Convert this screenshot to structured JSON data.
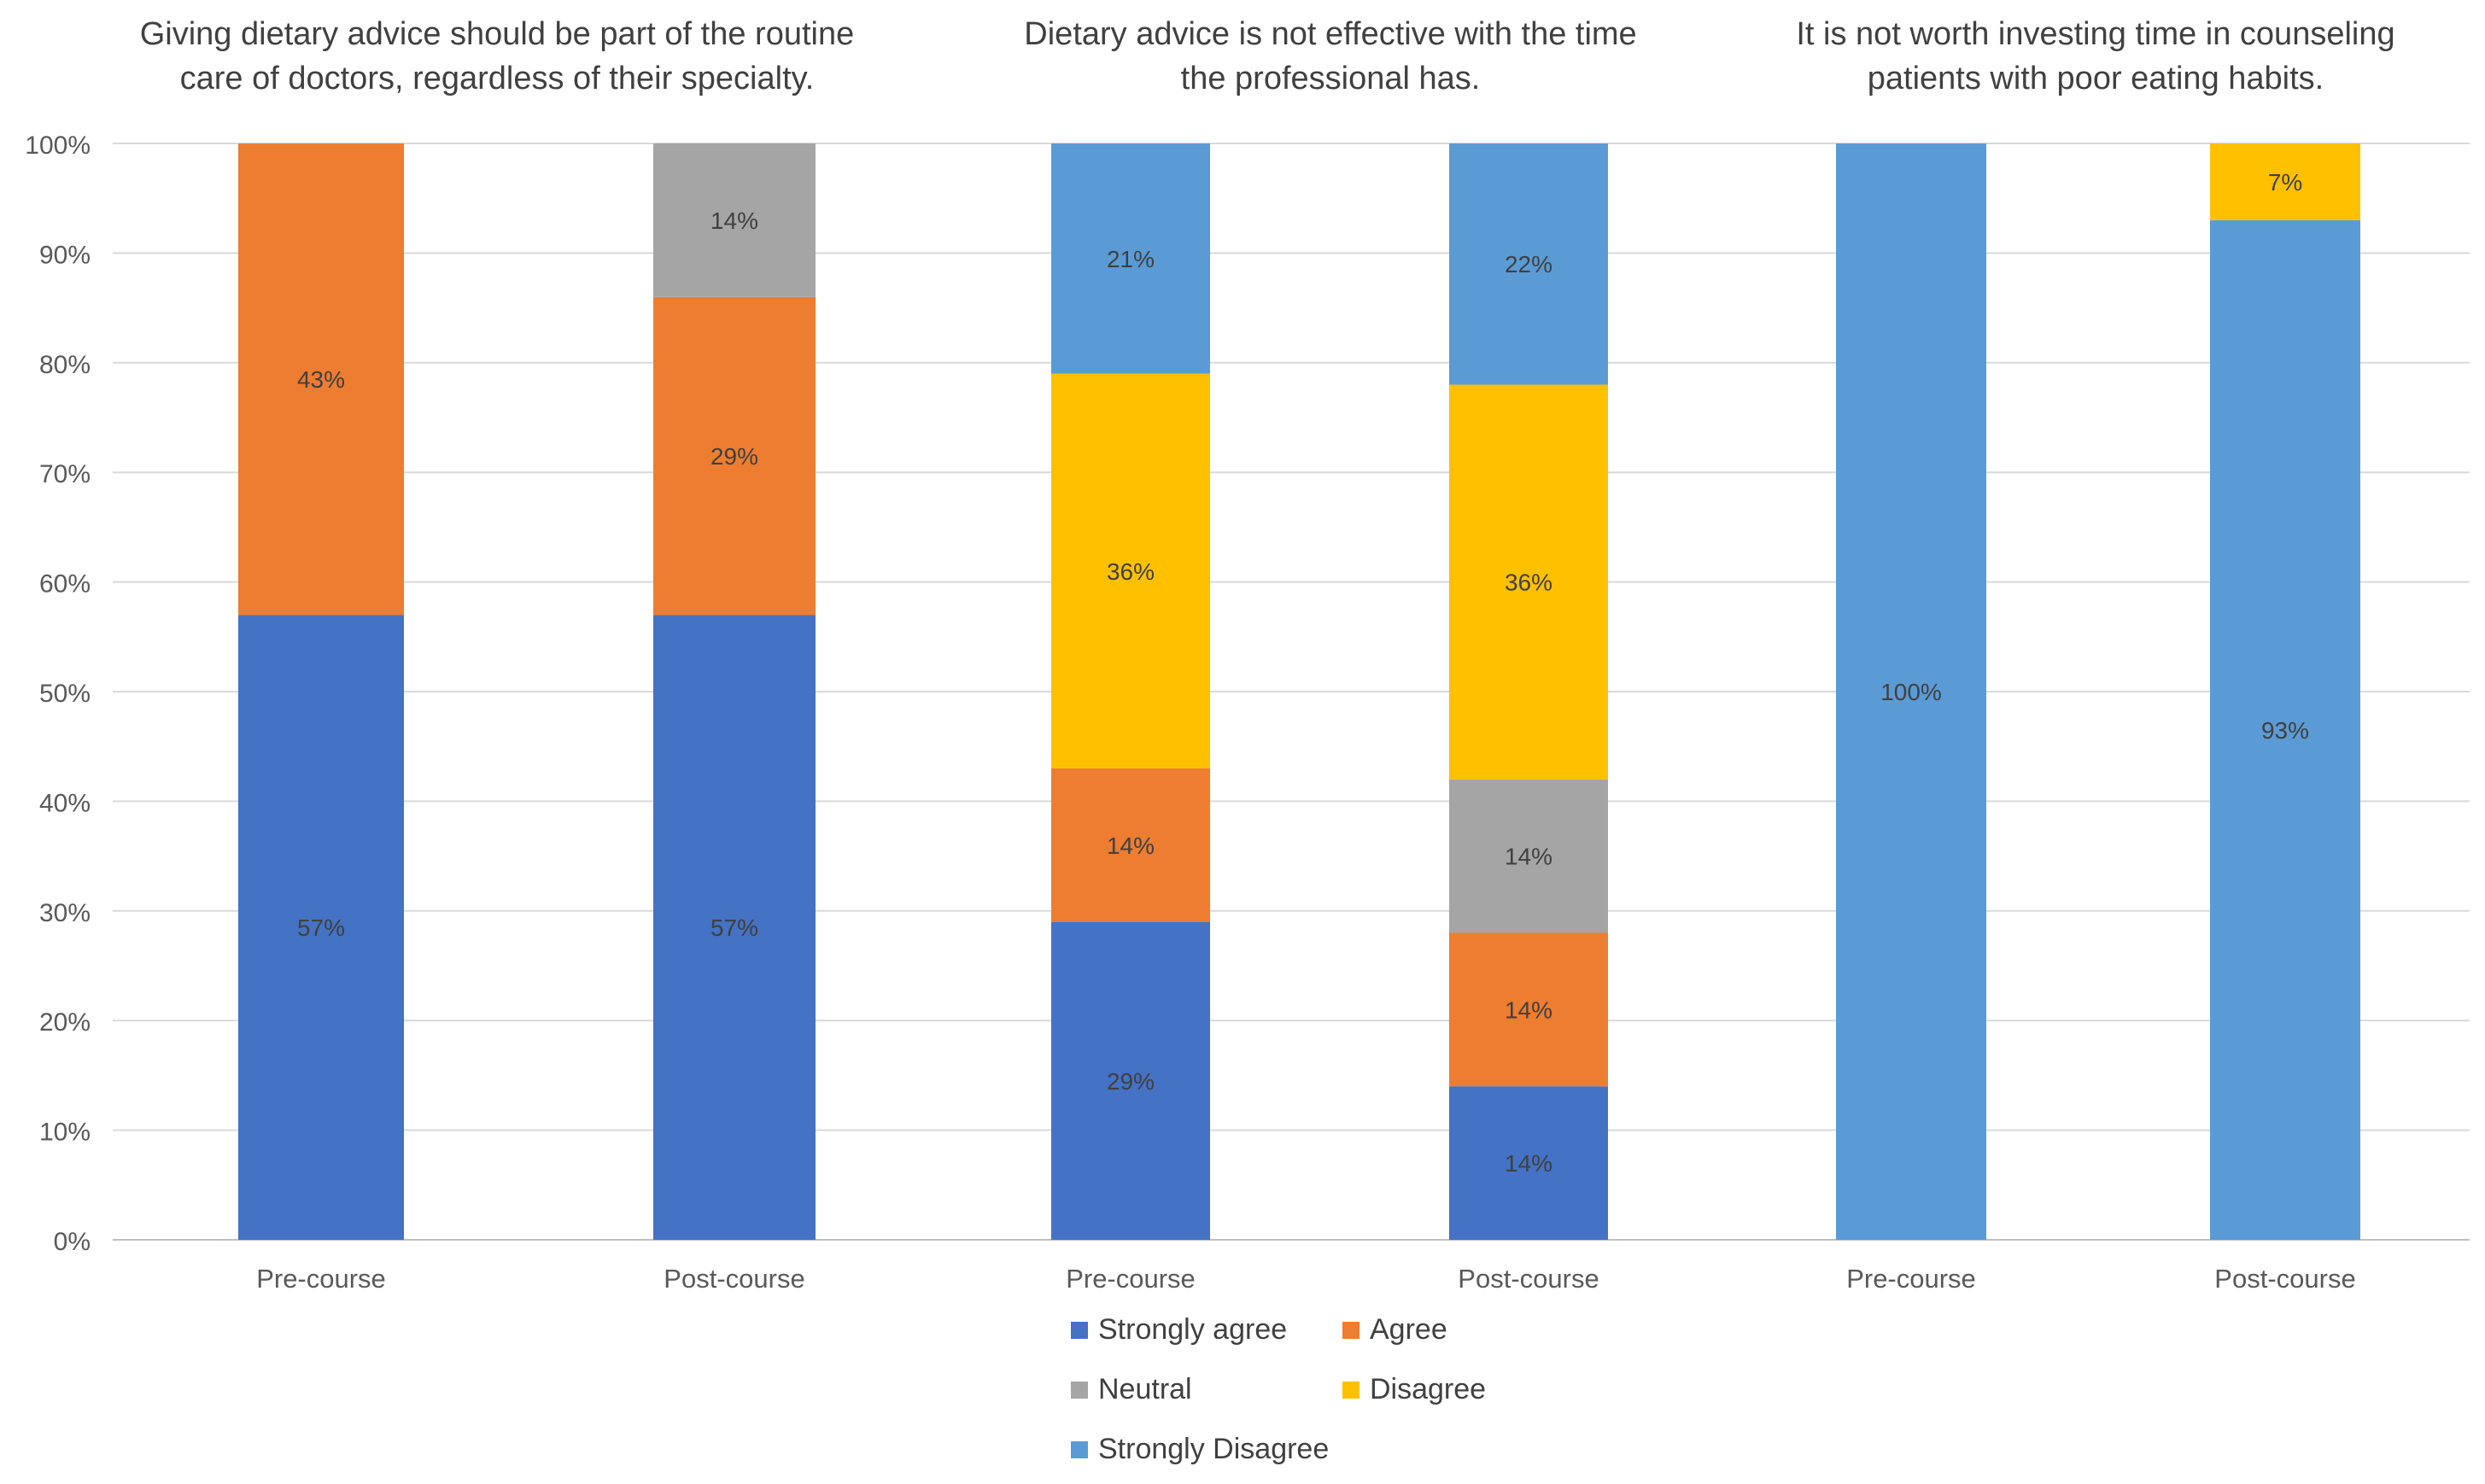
{
  "chart_data": {
    "type": "bar",
    "stacked": true,
    "categories": [
      "Pre-course",
      "Post-course"
    ],
    "yaxis": {
      "ylim": [
        0,
        100
      ],
      "ticks": [
        "0%",
        "10%",
        "20%",
        "30%",
        "40%",
        "50%",
        "60%",
        "70%",
        "80%",
        "90%",
        "100%"
      ]
    },
    "grid": true,
    "legend_position": "bottom-center",
    "colors": {
      "Strongly agree": "#4472C4",
      "Agree": "#ED7D31",
      "Neutral": "#A5A5A5",
      "Disagree": "#FFC000",
      "Strongly Disagree": "#5B9BD5"
    },
    "legend": [
      "Strongly agree",
      "Agree",
      "Neutral",
      "Disagree",
      "Strongly Disagree"
    ],
    "panels": [
      {
        "title_lines": [
          "Giving dietary advice should be part of the routine",
          "care of doctors, regardless of their specialty."
        ],
        "bars": [
          {
            "category": "Pre-course",
            "segments": [
              {
                "series": "Strongly agree",
                "value": 57,
                "label": "57%"
              },
              {
                "series": "Agree",
                "value": 43,
                "label": "43%"
              }
            ]
          },
          {
            "category": "Post-course",
            "segments": [
              {
                "series": "Strongly agree",
                "value": 57,
                "label": "57%"
              },
              {
                "series": "Agree",
                "value": 29,
                "label": "29%"
              },
              {
                "series": "Neutral",
                "value": 14,
                "label": "14%"
              }
            ]
          }
        ]
      },
      {
        "title_lines": [
          "Dietary advice is not effective with the time",
          "the professional has."
        ],
        "bars": [
          {
            "category": "Pre-course",
            "segments": [
              {
                "series": "Strongly agree",
                "value": 29,
                "label": "29%"
              },
              {
                "series": "Agree",
                "value": 14,
                "label": "14%"
              },
              {
                "series": "Disagree",
                "value": 36,
                "label": "36%"
              },
              {
                "series": "Strongly Disagree",
                "value": 21,
                "label": "21%"
              }
            ]
          },
          {
            "category": "Post-course",
            "segments": [
              {
                "series": "Strongly agree",
                "value": 14,
                "label": "14%"
              },
              {
                "series": "Agree",
                "value": 14,
                "label": "14%"
              },
              {
                "series": "Neutral",
                "value": 14,
                "label": "14%"
              },
              {
                "series": "Disagree",
                "value": 36,
                "label": "36%"
              },
              {
                "series": "Strongly Disagree",
                "value": 22,
                "label": "22%"
              }
            ]
          }
        ]
      },
      {
        "title_lines": [
          "It is not worth investing time in counseling",
          "patients with poor eating habits."
        ],
        "bars": [
          {
            "category": "Pre-course",
            "segments": [
              {
                "series": "Strongly Disagree",
                "value": 100,
                "label": "100%"
              }
            ]
          },
          {
            "category": "Post-course",
            "segments": [
              {
                "series": "Strongly Disagree",
                "value": 93,
                "label": "93%"
              },
              {
                "series": "Disagree",
                "value": 7,
                "label": "7%"
              }
            ]
          }
        ]
      }
    ]
  }
}
